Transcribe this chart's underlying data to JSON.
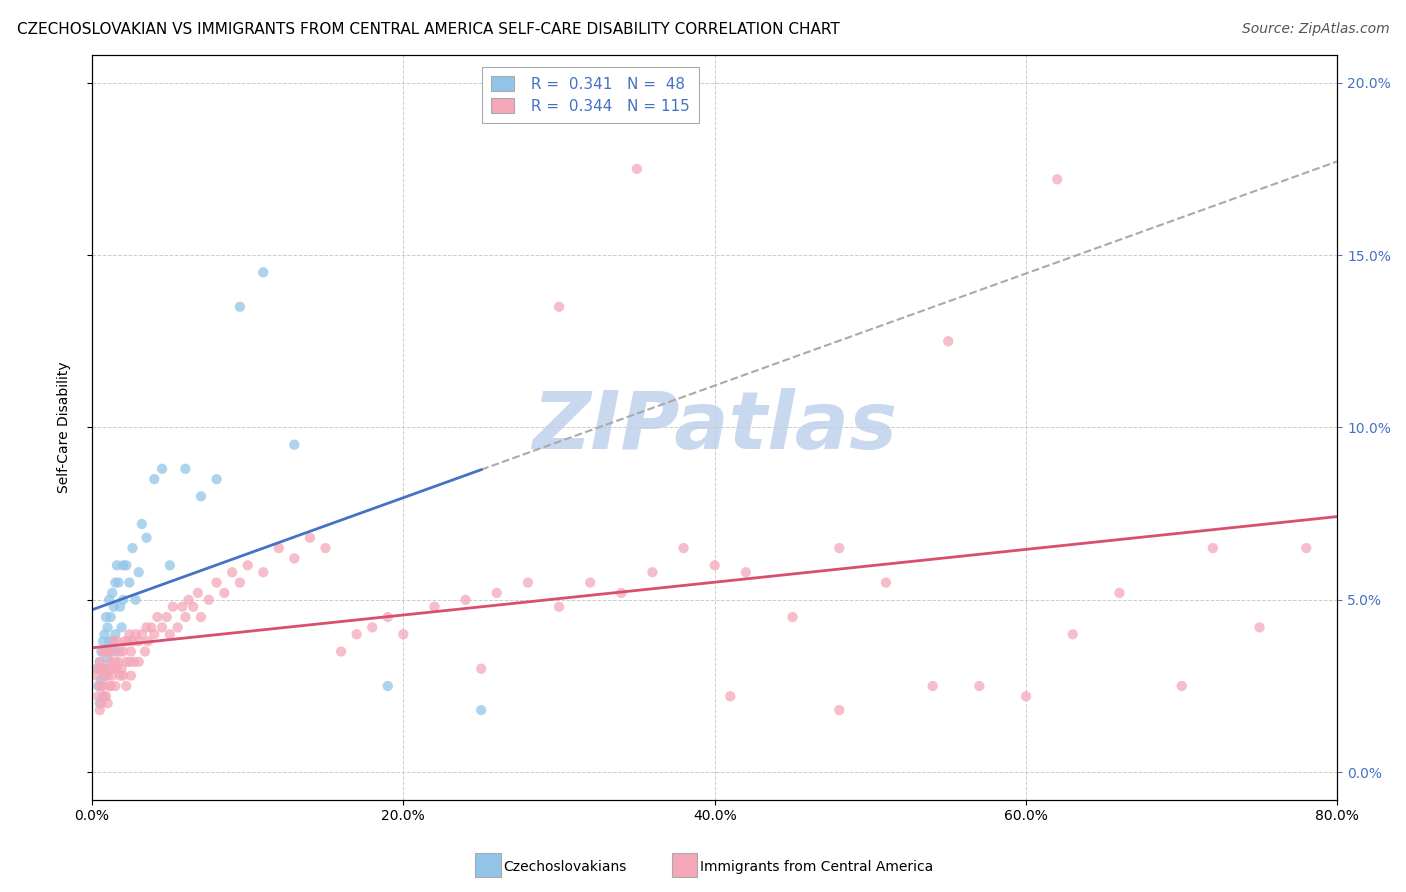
{
  "title": "CZECHOSLOVAKIAN VS IMMIGRANTS FROM CENTRAL AMERICA SELF-CARE DISABILITY CORRELATION CHART",
  "source": "Source: ZipAtlas.com",
  "xlim": [
    0.0,
    0.8
  ],
  "ylim": [
    -0.008,
    0.208
  ],
  "ylabel": "Self-Care Disability",
  "legend_label1": "Czechoslovakians",
  "legend_label2": "Immigrants from Central America",
  "R1": "0.341",
  "N1": "48",
  "R2": "0.344",
  "N2": "115",
  "color_blue": "#92C5E8",
  "color_pink": "#F4A7B9",
  "color_blue_line": "#4472C4",
  "color_pink_line": "#D94F6E",
  "color_dashed": "#AAAAAA",
  "background_color": "#FFFFFF",
  "watermark_text": "ZIPatlas",
  "watermark_color": "#C8D8EE",
  "title_fontsize": 11,
  "source_fontsize": 10,
  "axis_label_fontsize": 10,
  "tick_fontsize": 10,
  "legend_fontsize": 11,
  "right_tick_color": "#4472C4",
  "blue_scatter_x": [
    0.003,
    0.004,
    0.005,
    0.005,
    0.006,
    0.006,
    0.007,
    0.007,
    0.008,
    0.008,
    0.009,
    0.009,
    0.01,
    0.01,
    0.011,
    0.011,
    0.012,
    0.012,
    0.013,
    0.013,
    0.014,
    0.015,
    0.015,
    0.016,
    0.016,
    0.017,
    0.018,
    0.019,
    0.02,
    0.02,
    0.022,
    0.024,
    0.026,
    0.028,
    0.03,
    0.032,
    0.035,
    0.04,
    0.045,
    0.05,
    0.06,
    0.07,
    0.08,
    0.095,
    0.11,
    0.13,
    0.19,
    0.25
  ],
  "blue_scatter_y": [
    0.03,
    0.025,
    0.032,
    0.02,
    0.035,
    0.027,
    0.038,
    0.022,
    0.04,
    0.03,
    0.045,
    0.028,
    0.042,
    0.033,
    0.038,
    0.05,
    0.045,
    0.035,
    0.052,
    0.038,
    0.048,
    0.055,
    0.04,
    0.06,
    0.035,
    0.055,
    0.048,
    0.042,
    0.06,
    0.05,
    0.06,
    0.055,
    0.065,
    0.05,
    0.058,
    0.072,
    0.068,
    0.085,
    0.088,
    0.06,
    0.088,
    0.08,
    0.085,
    0.135,
    0.145,
    0.095,
    0.025,
    0.018
  ],
  "pink_scatter_x": [
    0.003,
    0.004,
    0.004,
    0.005,
    0.005,
    0.005,
    0.006,
    0.006,
    0.006,
    0.007,
    0.007,
    0.007,
    0.008,
    0.008,
    0.008,
    0.009,
    0.009,
    0.01,
    0.01,
    0.01,
    0.011,
    0.011,
    0.012,
    0.012,
    0.013,
    0.013,
    0.014,
    0.014,
    0.015,
    0.015,
    0.016,
    0.016,
    0.017,
    0.018,
    0.018,
    0.019,
    0.02,
    0.02,
    0.021,
    0.022,
    0.022,
    0.023,
    0.024,
    0.024,
    0.025,
    0.025,
    0.026,
    0.027,
    0.028,
    0.03,
    0.03,
    0.032,
    0.034,
    0.035,
    0.036,
    0.038,
    0.04,
    0.042,
    0.045,
    0.048,
    0.05,
    0.052,
    0.055,
    0.058,
    0.06,
    0.062,
    0.065,
    0.068,
    0.07,
    0.075,
    0.08,
    0.085,
    0.09,
    0.095,
    0.1,
    0.11,
    0.12,
    0.13,
    0.14,
    0.15,
    0.16,
    0.17,
    0.18,
    0.19,
    0.2,
    0.22,
    0.24,
    0.26,
    0.28,
    0.3,
    0.32,
    0.34,
    0.36,
    0.38,
    0.4,
    0.42,
    0.45,
    0.48,
    0.51,
    0.54,
    0.57,
    0.6,
    0.63,
    0.66,
    0.7,
    0.72,
    0.75,
    0.78,
    0.62,
    0.55,
    0.48,
    0.41,
    0.35,
    0.3,
    0.25
  ],
  "pink_scatter_y": [
    0.028,
    0.022,
    0.03,
    0.025,
    0.018,
    0.032,
    0.025,
    0.03,
    0.02,
    0.03,
    0.025,
    0.035,
    0.022,
    0.028,
    0.035,
    0.03,
    0.022,
    0.028,
    0.035,
    0.02,
    0.03,
    0.025,
    0.032,
    0.025,
    0.035,
    0.028,
    0.03,
    0.038,
    0.032,
    0.025,
    0.03,
    0.038,
    0.032,
    0.028,
    0.035,
    0.03,
    0.035,
    0.028,
    0.038,
    0.032,
    0.025,
    0.038,
    0.032,
    0.04,
    0.035,
    0.028,
    0.038,
    0.032,
    0.04,
    0.038,
    0.032,
    0.04,
    0.035,
    0.042,
    0.038,
    0.042,
    0.04,
    0.045,
    0.042,
    0.045,
    0.04,
    0.048,
    0.042,
    0.048,
    0.045,
    0.05,
    0.048,
    0.052,
    0.045,
    0.05,
    0.055,
    0.052,
    0.058,
    0.055,
    0.06,
    0.058,
    0.065,
    0.062,
    0.068,
    0.065,
    0.035,
    0.04,
    0.042,
    0.045,
    0.04,
    0.048,
    0.05,
    0.052,
    0.055,
    0.048,
    0.055,
    0.052,
    0.058,
    0.065,
    0.06,
    0.058,
    0.045,
    0.065,
    0.055,
    0.025,
    0.025,
    0.022,
    0.04,
    0.052,
    0.025,
    0.065,
    0.042,
    0.065,
    0.172,
    0.125,
    0.018,
    0.022,
    0.175,
    0.135,
    0.03
  ]
}
